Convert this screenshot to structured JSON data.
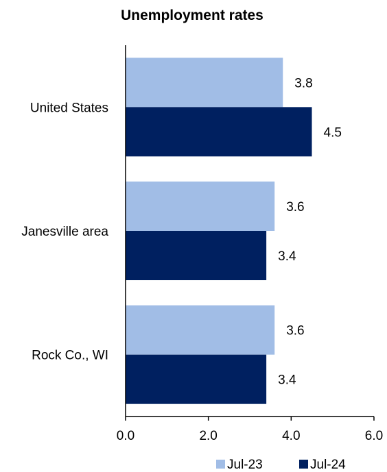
{
  "chart_data": {
    "type": "bar",
    "orientation": "horizontal",
    "title": "Unemployment rates",
    "xlabel": "",
    "ylabel": "",
    "categories": [
      "United States",
      "Janesville area",
      "Rock Co., WI"
    ],
    "series": [
      {
        "name": "Jul-23",
        "values": [
          3.8,
          3.6,
          3.6
        ],
        "color": "#a1bde6"
      },
      {
        "name": "Jul-24",
        "values": [
          4.5,
          3.4,
          3.4
        ],
        "color": "#002060"
      }
    ],
    "xlim": [
      0,
      6
    ],
    "xticks": [
      "0.0",
      "2.0",
      "4.0",
      "6.0"
    ],
    "data_labels": [
      [
        "3.8",
        "3.6",
        "3.6"
      ],
      [
        "4.5",
        "3.4",
        "3.4"
      ]
    ],
    "grid": false,
    "legend_position": "bottom"
  }
}
